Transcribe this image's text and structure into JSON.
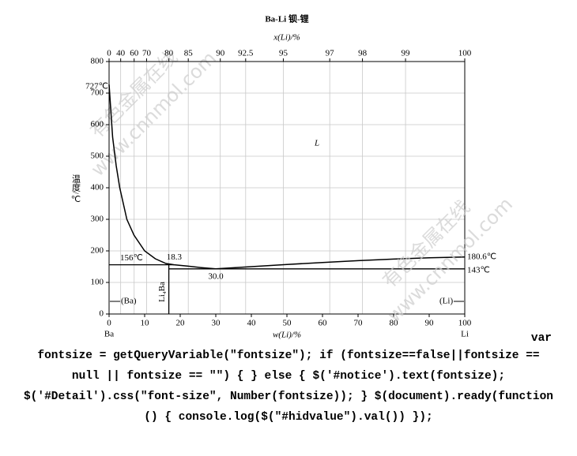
{
  "chart_data": {
    "type": "phase-diagram",
    "title": "Ba-Li  钡-锂",
    "x_label": "w(Li)/%",
    "x2_label": "x(Li)/%",
    "y_label": "温度/℃",
    "xlim": [
      0,
      100
    ],
    "xticks": [
      0,
      10,
      20,
      30,
      40,
      50,
      60,
      70,
      80,
      90,
      100
    ],
    "x2ticks": [
      0,
      40,
      60,
      70,
      80,
      85,
      90,
      92.5,
      95,
      97,
      98,
      99,
      100
    ],
    "ylim": [
      0,
      800
    ],
    "yticks": [
      0,
      100,
      200,
      300,
      400,
      500,
      600,
      700,
      800
    ],
    "grid": true,
    "series": [
      {
        "name": "liquidus",
        "color": "#000000",
        "x": [
          0,
          1,
          2,
          3,
          5,
          7,
          10,
          13,
          16,
          18.3,
          22,
          26,
          30,
          40,
          50,
          60,
          70,
          80,
          90,
          100
        ],
        "y": [
          727,
          560,
          470,
          400,
          300,
          250,
          200,
          175,
          160,
          156,
          152,
          147,
          143,
          150,
          157,
          163,
          169,
          174,
          178,
          180.6
        ]
      }
    ],
    "isotherms": [
      {
        "value": 156,
        "label": "156℃",
        "from": 0,
        "to": 18.3
      },
      {
        "value": 143,
        "label": "143℃",
        "from": 16.8,
        "to": 100
      }
    ],
    "melting_points": [
      {
        "value": 727,
        "label": "727℃",
        "x": 0
      },
      {
        "value": 180.6,
        "label": "180.6℃",
        "x": 100
      }
    ],
    "invariant_points": [
      {
        "label": "18.3",
        "x": 18.3,
        "y": 156
      },
      {
        "label": "30.0",
        "x": 30,
        "y": 143
      }
    ],
    "compound": {
      "label": "Li₄Ba",
      "x": 16.8
    },
    "phase_labels": [
      "L",
      "(Ba)",
      "(Li)"
    ],
    "element_labels": [
      "Ba",
      "Li"
    ],
    "watermarks": [
      "有色金属在线",
      "www.cnnmol.com"
    ]
  },
  "code_lines": [
    "var",
    "fontsize = getQueryVariable(\"fontsize\"); if (fontsize==false||fontsize ==",
    "null || fontsize == \"\") { } else { $('#notice').text(fontsize);",
    "$('#Detail').css(\"font-size\", Number(fontsize)); } $(document).ready(function",
    "() { console.log($(\"#hidvalue\").val()) });"
  ]
}
